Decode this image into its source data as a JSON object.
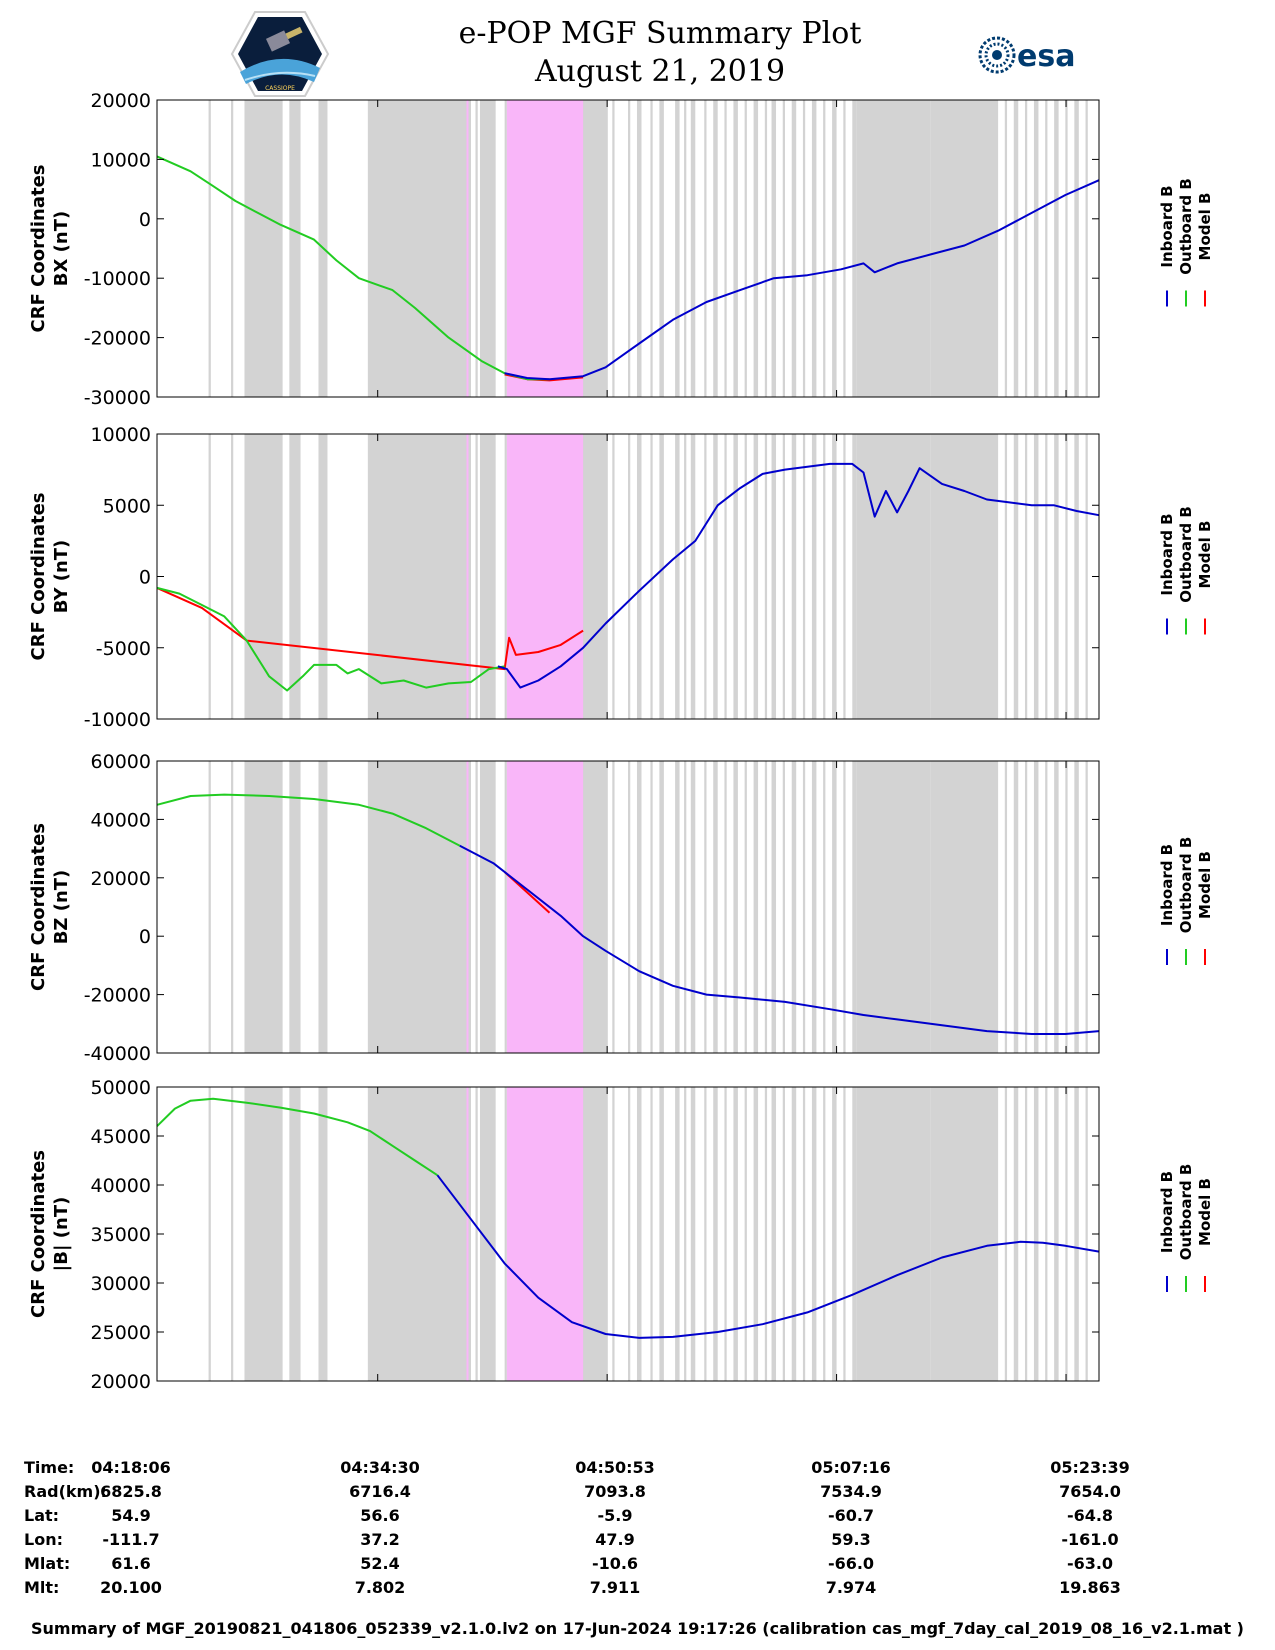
{
  "header": {
    "title_line1": "e-POP MGF Summary Plot",
    "title_line2": "August 21, 2019",
    "logo_left_name": "CASSIOPE",
    "logo_right_name": "esa"
  },
  "colors": {
    "inboard": "#0000cc",
    "outboard": "#22cc22",
    "model": "#ff0000",
    "gap_shade": "#d3d3d3",
    "highlight": "#f9b6f9"
  },
  "legend": {
    "inboard": "Inboard B",
    "outboard": "Outboard B",
    "model": "Model B"
  },
  "shading": {
    "note": "x values in seconds after 04:18:06 (axis spans 0-4200 s)",
    "gray_spans": [
      [
        230,
        240
      ],
      [
        330,
        340
      ],
      [
        390,
        560
      ],
      [
        590,
        640
      ],
      [
        720,
        760
      ],
      [
        940,
        1120
      ],
      [
        1150,
        1230
      ],
      [
        1250,
        1330
      ],
      [
        1350,
        1380
      ],
      [
        1420,
        1430
      ],
      [
        1440,
        1510
      ],
      [
        1550,
        1560
      ],
      [
        1580,
        1590
      ],
      [
        1640,
        1650
      ],
      [
        1680,
        1690
      ],
      [
        1740,
        1750
      ],
      [
        1780,
        1790
      ],
      [
        1810,
        1830
      ],
      [
        1860,
        1870
      ],
      [
        1890,
        1900
      ],
      [
        1930,
        1940
      ],
      [
        1970,
        1980
      ],
      [
        2030,
        2040
      ],
      [
        2100,
        2110
      ],
      [
        2140,
        2160
      ],
      [
        2200,
        2210
      ],
      [
        2240,
        2260
      ],
      [
        2310,
        2330
      ],
      [
        2350,
        2360
      ],
      [
        2380,
        2400
      ],
      [
        2440,
        2450
      ],
      [
        2480,
        2500
      ],
      [
        2530,
        2540
      ],
      [
        2570,
        2590
      ],
      [
        2620,
        2630
      ],
      [
        2660,
        2680
      ],
      [
        2710,
        2720
      ],
      [
        2740,
        2760
      ],
      [
        2790,
        2800
      ],
      [
        2830,
        2850
      ],
      [
        2880,
        2890
      ],
      [
        2920,
        2940
      ],
      [
        2970,
        2980
      ],
      [
        3010,
        3030
      ],
      [
        3060,
        3070
      ],
      [
        3100,
        3120
      ],
      [
        3150,
        3160
      ],
      [
        3190,
        3210
      ],
      [
        3240,
        3250
      ],
      [
        3280,
        3300
      ],
      [
        3330,
        3340
      ],
      [
        3370,
        3390
      ],
      [
        3420,
        3430
      ],
      [
        3460,
        3480
      ],
      [
        3510,
        3520
      ],
      [
        3550,
        3570
      ],
      [
        3600,
        3610
      ],
      [
        3640,
        3660
      ],
      [
        3690,
        3700
      ],
      [
        3730,
        3750
      ],
      [
        3780,
        3790
      ],
      [
        3820,
        3840
      ],
      [
        3870,
        3880
      ],
      [
        3910,
        3930
      ],
      [
        3960,
        3970
      ],
      [
        4000,
        4020
      ],
      [
        4050,
        4060
      ],
      [
        4090,
        4110
      ],
      [
        4140,
        4150
      ],
      [
        1060,
        1400
      ],
      [
        1790,
        2000
      ],
      [
        2160,
        2150
      ],
      [
        3120,
        3450
      ],
      [
        3450,
        3750
      ]
    ],
    "magenta_span": [
      1560,
      1900
    ],
    "gray_block_after_magenta": [
      1900,
      2010
    ],
    "magenta_thin_lines": [
      1380,
      1385
    ]
  },
  "time_axis": {
    "tick_labels": [
      "04:18:06",
      "04:34:30",
      "04:50:53",
      "05:07:16",
      "05:23:39"
    ],
    "tick_seconds": [
      0,
      984,
      2007,
      3030,
      4053
    ],
    "xlim": [
      0,
      4200
    ]
  },
  "info_table": {
    "row_labels": [
      "Time:",
      "Rad(km):",
      "Lat:",
      "Lon:",
      "Mlat:",
      "Mlt:"
    ],
    "columns": [
      [
        "04:18:06",
        "6825.8",
        "54.9",
        "-111.7",
        "61.6",
        "20.100"
      ],
      [
        "04:34:30",
        "6716.4",
        "56.6",
        "37.2",
        "52.4",
        "7.802"
      ],
      [
        "04:50:53",
        "7093.8",
        "-5.9",
        "47.9",
        "-10.6",
        "7.911"
      ],
      [
        "05:07:16",
        "7534.9",
        "-60.7",
        "59.3",
        "-66.0",
        "7.974"
      ],
      [
        "05:23:39",
        "7654.0",
        "-64.8",
        "-161.0",
        "-63.0",
        "19.863"
      ]
    ]
  },
  "footer": "Summary of MGF_20190821_041806_052339_v2.1.0.lv2 on 17-Jun-2024 19:17:26 (calibration cas_mgf_7day_cal_2019_08_16_v2.1.mat )",
  "chart_data": [
    {
      "type": "line",
      "title": "BX",
      "ylabel_line1": "CRF Coordinates",
      "ylabel_line2": "BX (nT)",
      "ylim": [
        -30000,
        20000
      ],
      "yticks": [
        20000,
        10000,
        0,
        -10000,
        -20000,
        -30000
      ],
      "ytick_labels": [
        "20000",
        "10000",
        "0",
        "-10000",
        "-20000",
        "-30000"
      ],
      "series": [
        {
          "name": "Outboard B",
          "x": [
            0,
            150,
            250,
            350,
            450,
            550,
            700,
            800,
            900,
            1050,
            1150,
            1300,
            1450,
            1550,
            1650,
            1750
          ],
          "values": [
            10500,
            8000,
            5500,
            3000,
            1000,
            -1000,
            -3500,
            -7000,
            -10000,
            -12000,
            -15000,
            -20000,
            -24000,
            -26000,
            -27000,
            -27000
          ]
        },
        {
          "name": "Model B",
          "x": [
            1550,
            1650,
            1750,
            1900
          ],
          "values": [
            -26200,
            -27000,
            -27200,
            -26700
          ]
        },
        {
          "name": "Inboard B",
          "x": [
            1550,
            1650,
            1750,
            1900,
            2000,
            2150,
            2300,
            2450,
            2600,
            2750,
            2900,
            3050,
            3150,
            3200,
            3300,
            3450,
            3600,
            3750,
            3900,
            4050,
            4200
          ],
          "values": [
            -26000,
            -26800,
            -27000,
            -26500,
            -25000,
            -21000,
            -17000,
            -14000,
            -12000,
            -10000,
            -9500,
            -8500,
            -7500,
            -9000,
            -7500,
            -6000,
            -4500,
            -2000,
            1000,
            4000,
            6500
          ]
        }
      ]
    },
    {
      "type": "line",
      "title": "BY",
      "ylabel_line1": "CRF Coordinates",
      "ylabel_line2": "BY (nT)",
      "ylim": [
        -10000,
        10000
      ],
      "yticks": [
        10000,
        5000,
        0,
        -5000,
        -10000
      ],
      "ytick_labels": [
        "10000",
        "5000",
        "0",
        "-5000",
        "-10000"
      ],
      "series": [
        {
          "name": "Outboard B",
          "x": [
            0,
            100,
            200,
            300,
            400,
            500,
            580,
            650,
            700,
            800,
            850,
            900,
            1000,
            1100,
            1200,
            1300,
            1400,
            1480,
            1550
          ],
          "values": [
            -800,
            -1200,
            -2000,
            -2800,
            -4500,
            -7000,
            -8000,
            -7000,
            -6200,
            -6200,
            -6800,
            -6500,
            -7500,
            -7300,
            -7800,
            -7500,
            -7400,
            -6500,
            -6300
          ]
        },
        {
          "name": "Model B",
          "x": [
            0,
            200,
            400,
            1550,
            1570,
            1600,
            1700,
            1800,
            1900
          ],
          "values": [
            -800,
            -2200,
            -4500,
            -6500,
            -4300,
            -5500,
            -5300,
            -4800,
            -3800
          ]
        },
        {
          "name": "Inboard B",
          "x": [
            1520,
            1560,
            1620,
            1700,
            1800,
            1900,
            2000,
            2150,
            2300,
            2400,
            2500,
            2600,
            2700,
            2800,
            2900,
            3000,
            3100,
            3150,
            3200,
            3250,
            3300,
            3350,
            3400,
            3500,
            3600,
            3700,
            3800,
            3900,
            4000,
            4100,
            4200
          ],
          "values": [
            -6300,
            -6500,
            -7800,
            -7300,
            -6300,
            -5000,
            -3300,
            -1000,
            1200,
            2500,
            5000,
            6200,
            7200,
            7500,
            7700,
            7900,
            7900,
            7300,
            4200,
            6000,
            4500,
            6000,
            7600,
            6500,
            6000,
            5400,
            5200,
            5000,
            5000,
            4600,
            4300
          ]
        }
      ]
    },
    {
      "type": "line",
      "title": "BZ",
      "ylabel_line1": "CRF Coordinates",
      "ylabel_line2": "BZ (nT)",
      "ylim": [
        -40000,
        60000
      ],
      "yticks": [
        60000,
        40000,
        20000,
        0,
        -20000,
        -40000
      ],
      "ytick_labels": [
        "60000",
        "40000",
        "20000",
        "0",
        "-20000",
        "-40000"
      ],
      "series": [
        {
          "name": "Outboard B",
          "x": [
            0,
            150,
            300,
            500,
            700,
            900,
            1050,
            1200,
            1350
          ],
          "values": [
            45000,
            48000,
            48500,
            48000,
            47000,
            45000,
            42000,
            37000,
            31000
          ]
        },
        {
          "name": "Model B",
          "x": [
            1550,
            1650,
            1750
          ],
          "values": [
            22000,
            15000,
            8000
          ]
        },
        {
          "name": "Inboard B",
          "x": [
            1350,
            1500,
            1650,
            1800,
            1900,
            2000,
            2150,
            2300,
            2450,
            2600,
            2800,
            3000,
            3150,
            3300,
            3500,
            3700,
            3900,
            4050,
            4200
          ],
          "values": [
            31000,
            25000,
            16000,
            7000,
            0,
            -5000,
            -12000,
            -17000,
            -20000,
            -21000,
            -22500,
            -25000,
            -27000,
            -28500,
            -30500,
            -32500,
            -33500,
            -33500,
            -32500
          ]
        }
      ]
    },
    {
      "type": "line",
      "title": "|B|",
      "ylabel_line1": "CRF Coordinates",
      "ylabel_line2": "|B| (nT)",
      "ylim": [
        20000,
        50000
      ],
      "yticks": [
        50000,
        45000,
        40000,
        35000,
        30000,
        25000,
        20000
      ],
      "ytick_labels": [
        "50000",
        "45000",
        "40000",
        "35000",
        "30000",
        "25000",
        "20000"
      ],
      "series": [
        {
          "name": "Outboard B",
          "x": [
            0,
            80,
            150,
            250,
            400,
            550,
            700,
            850,
            950,
            1050,
            1150,
            1250
          ],
          "values": [
            46000,
            47800,
            48600,
            48800,
            48400,
            47900,
            47300,
            46400,
            45500,
            44000,
            42500,
            41000
          ]
        },
        {
          "name": "Inboard B",
          "x": [
            1250,
            1400,
            1550,
            1700,
            1850,
            2000,
            2150,
            2300,
            2500,
            2700,
            2900,
            3100,
            3300,
            3500,
            3700,
            3850,
            3950,
            4050,
            4200
          ],
          "values": [
            41000,
            36500,
            32000,
            28500,
            26000,
            24800,
            24400,
            24500,
            25000,
            25800,
            27000,
            28800,
            30800,
            32600,
            33800,
            34200,
            34100,
            33800,
            33200
          ]
        }
      ]
    }
  ]
}
